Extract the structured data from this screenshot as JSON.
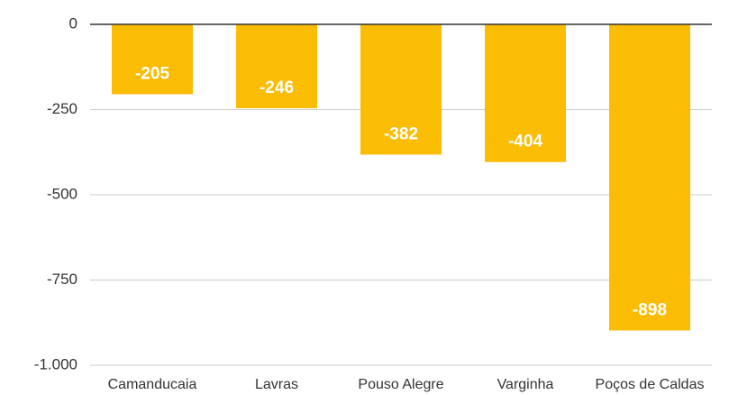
{
  "chart_data": {
    "type": "bar",
    "categories": [
      "Camanducaia",
      "Lavras",
      "Pouso Alegre",
      "Varginha",
      "Poços de Caldas"
    ],
    "values": [
      -205,
      -246,
      -382,
      -404,
      -898
    ],
    "color": "#fbbc04",
    "ylim": [
      -1000,
      0
    ],
    "yticks": [
      0,
      -250,
      -500,
      -750,
      {
        "value": -1000,
        "label": "-1.000"
      }
    ],
    "grid": true
  }
}
